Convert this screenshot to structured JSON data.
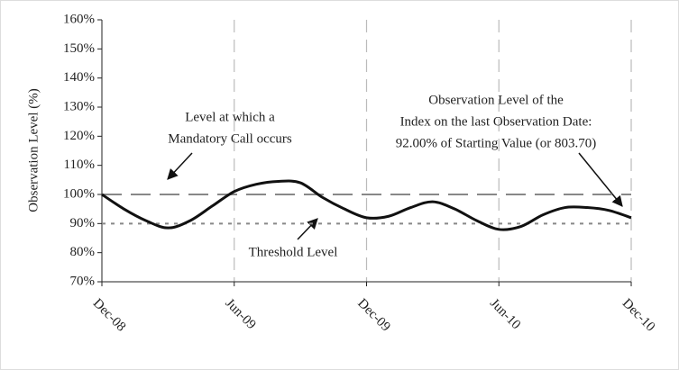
{
  "chart_data": {
    "type": "line",
    "y_axis_label": "Observation Level (%)",
    "categories": [
      "Dec-08",
      null,
      null,
      null,
      null,
      null,
      "Jun-09",
      null,
      null,
      null,
      null,
      null,
      "Dec-09",
      null,
      null,
      null,
      null,
      null,
      "Jun-10",
      null,
      null,
      null,
      null,
      null,
      "Dec-10"
    ],
    "series": [
      {
        "name": "Observation Level",
        "color": "#111111",
        "values": [
          100,
          95,
          91,
          88.5,
          91,
          96,
          101,
          103.5,
          104.5,
          104,
          99,
          95,
          92,
          92.5,
          95.5,
          97.5,
          95,
          91,
          88,
          89,
          93,
          95.5,
          95.5,
          94.5,
          92
        ]
      }
    ],
    "ylim": [
      70,
      160
    ],
    "yticks": [
      {
        "value": 70,
        "label": "70%"
      },
      {
        "value": 80,
        "label": "80%"
      },
      {
        "value": 90,
        "label": "90%"
      },
      {
        "value": 100,
        "label": "100%"
      },
      {
        "value": 110,
        "label": "110%"
      },
      {
        "value": 120,
        "label": "120%"
      },
      {
        "value": 130,
        "label": "130%"
      },
      {
        "value": 140,
        "label": "140%"
      },
      {
        "value": 150,
        "label": "150%"
      },
      {
        "value": 160,
        "label": "160%"
      }
    ],
    "reference_lines": [
      {
        "value": 100,
        "style": "dashed",
        "color": "#888888"
      },
      {
        "value": 90,
        "style": "dotted",
        "color": "#888888"
      }
    ],
    "annotations": [
      {
        "lines": [
          "Level at which a",
          "Mandatory Call occurs"
        ]
      },
      {
        "lines": [
          "Threshold Level"
        ]
      },
      {
        "lines": [
          "Observation Level of the",
          "Index on the last Observation Date:",
          "92.00% of Starting Value (or 803.70)"
        ]
      }
    ]
  }
}
